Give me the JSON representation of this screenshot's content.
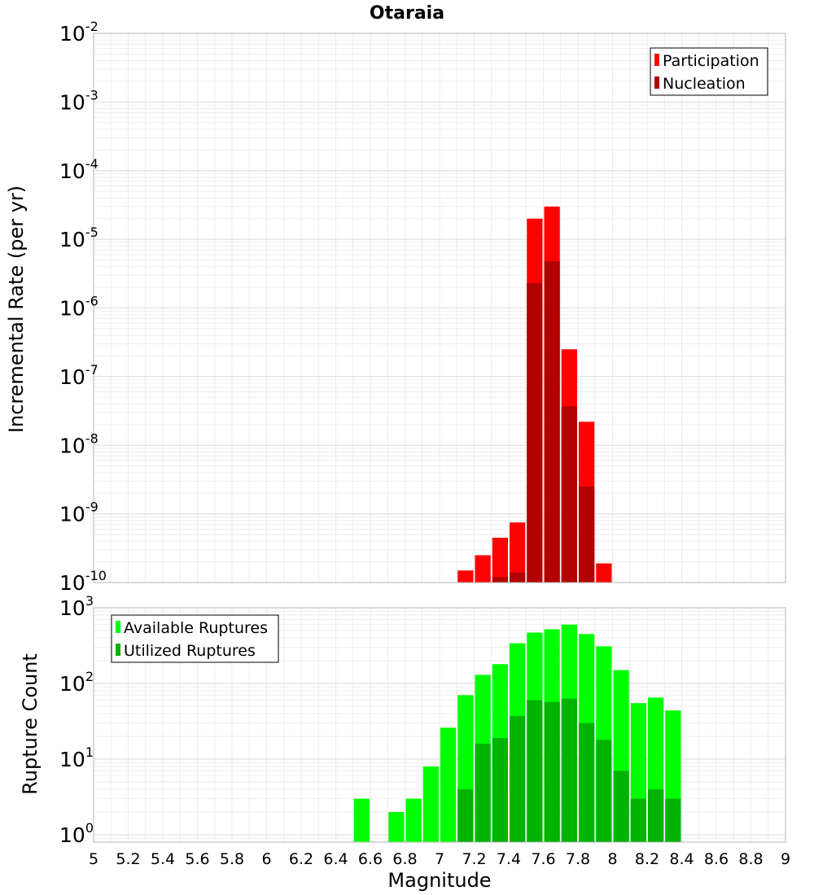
{
  "chart_data": [
    {
      "type": "bar",
      "title": "Otaraia",
      "ylabel": "Incremental Rate (per yr)",
      "y_scale": "log",
      "ylim": [
        1e-10,
        0.01
      ],
      "xlim": [
        5,
        9
      ],
      "grid": true,
      "legend_position": "top-right",
      "y_tick_labels": [
        {
          "base": "10",
          "exp": "-2"
        },
        {
          "base": "10",
          "exp": "-3"
        },
        {
          "base": "10",
          "exp": "-4"
        },
        {
          "base": "10",
          "exp": "-5"
        },
        {
          "base": "10",
          "exp": "-6"
        },
        {
          "base": "10",
          "exp": "-7"
        },
        {
          "base": "10",
          "exp": "-8"
        },
        {
          "base": "10",
          "exp": "-9"
        },
        {
          "base": "10",
          "exp": "-10"
        }
      ],
      "series": [
        {
          "name": "Participation",
          "color": "#ff0000",
          "points": [
            {
              "x": 7.15,
              "y": 1.5e-10
            },
            {
              "x": 7.25,
              "y": 2.5e-10
            },
            {
              "x": 7.35,
              "y": 4.5e-10
            },
            {
              "x": 7.45,
              "y": 7.5e-10
            },
            {
              "x": 7.55,
              "y": 2e-05
            },
            {
              "x": 7.65,
              "y": 3e-05
            },
            {
              "x": 7.75,
              "y": 2.5e-07
            },
            {
              "x": 7.85,
              "y": 2.2e-08
            },
            {
              "x": 7.95,
              "y": 1.9e-10
            }
          ]
        },
        {
          "name": "Nucleation",
          "color": "#b30000",
          "points": [
            {
              "x": 7.35,
              "y": 1.2e-10
            },
            {
              "x": 7.45,
              "y": 1.4e-10
            },
            {
              "x": 7.55,
              "y": 2.3e-06
            },
            {
              "x": 7.65,
              "y": 4.8e-06
            },
            {
              "x": 7.75,
              "y": 3.7e-08
            },
            {
              "x": 7.85,
              "y": 2.5e-09
            }
          ]
        }
      ]
    },
    {
      "type": "bar",
      "ylabel": "Rupture Count",
      "xlabel": "Magnitude",
      "y_scale": "log",
      "ylim": [
        0.8,
        1000
      ],
      "xlim": [
        5,
        9
      ],
      "grid": true,
      "legend_position": "top-left",
      "x_ticks": [
        "5",
        "5.2",
        "5.4",
        "5.6",
        "5.8",
        "6",
        "6.2",
        "6.4",
        "6.6",
        "6.8",
        "7",
        "7.2",
        "7.4",
        "7.6",
        "7.8",
        "8",
        "8.2",
        "8.4",
        "8.6",
        "8.8",
        "9"
      ],
      "y_tick_labels": [
        {
          "base": "10",
          "exp": "3"
        },
        {
          "base": "10",
          "exp": "2"
        },
        {
          "base": "10",
          "exp": "1"
        },
        {
          "base": "10",
          "exp": "0"
        }
      ],
      "series": [
        {
          "name": "Available Ruptures",
          "color": "#00ff00",
          "points": [
            {
              "x": 6.55,
              "y": 3
            },
            {
              "x": 6.75,
              "y": 2
            },
            {
              "x": 6.85,
              "y": 3
            },
            {
              "x": 6.95,
              "y": 8
            },
            {
              "x": 7.05,
              "y": 26
            },
            {
              "x": 7.15,
              "y": 70
            },
            {
              "x": 7.25,
              "y": 130
            },
            {
              "x": 7.35,
              "y": 180
            },
            {
              "x": 7.45,
              "y": 340
            },
            {
              "x": 7.55,
              "y": 470
            },
            {
              "x": 7.65,
              "y": 520
            },
            {
              "x": 7.75,
              "y": 600
            },
            {
              "x": 7.85,
              "y": 450
            },
            {
              "x": 7.95,
              "y": 310
            },
            {
              "x": 8.05,
              "y": 150
            },
            {
              "x": 8.15,
              "y": 55
            },
            {
              "x": 8.25,
              "y": 65
            },
            {
              "x": 8.35,
              "y": 44
            }
          ]
        },
        {
          "name": "Utilized Ruptures",
          "color": "#00b300",
          "points": [
            {
              "x": 7.15,
              "y": 4
            },
            {
              "x": 7.25,
              "y": 16
            },
            {
              "x": 7.35,
              "y": 19
            },
            {
              "x": 7.45,
              "y": 37
            },
            {
              "x": 7.55,
              "y": 60
            },
            {
              "x": 7.65,
              "y": 57
            },
            {
              "x": 7.75,
              "y": 63
            },
            {
              "x": 7.85,
              "y": 30
            },
            {
              "x": 7.95,
              "y": 18
            },
            {
              "x": 8.05,
              "y": 7
            },
            {
              "x": 8.15,
              "y": 3
            },
            {
              "x": 8.25,
              "y": 4
            },
            {
              "x": 8.35,
              "y": 3
            }
          ]
        }
      ]
    }
  ]
}
